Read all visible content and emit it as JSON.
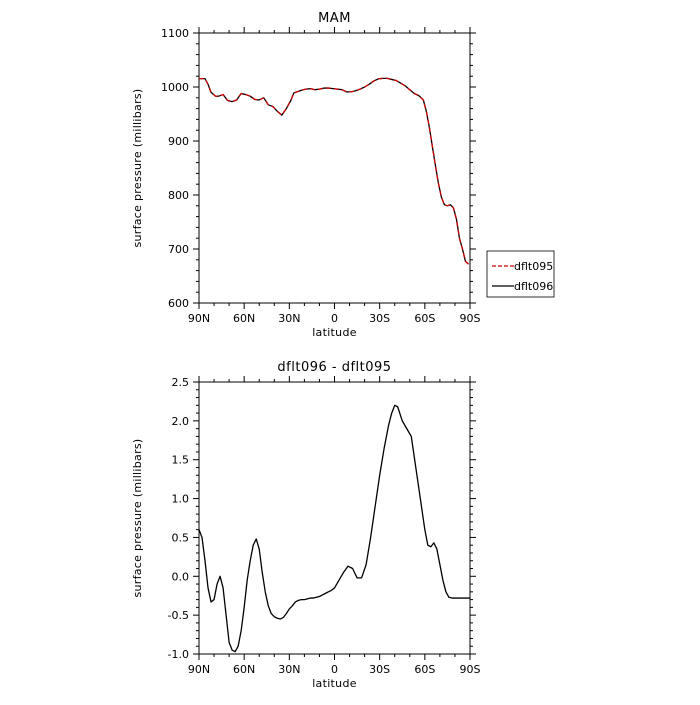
{
  "chart_data": [
    {
      "type": "line",
      "title": "MAM",
      "xlabel": "latitude",
      "ylabel": "surface pressure (millibars)",
      "xlim": [
        90,
        -90
      ],
      "ylim": [
        600,
        1100
      ],
      "xticks": [
        {
          "value": 90,
          "label": "90N"
        },
        {
          "value": 60,
          "label": "60N"
        },
        {
          "value": 30,
          "label": "30N"
        },
        {
          "value": 0,
          "label": "0"
        },
        {
          "value": -30,
          "label": "30S"
        },
        {
          "value": -60,
          "label": "60S"
        },
        {
          "value": -90,
          "label": "90S"
        }
      ],
      "yticks": [
        600,
        700,
        800,
        900,
        1000,
        1100
      ],
      "legend_position": "outside-right",
      "series": [
        {
          "name": "dflt095",
          "color": "#cc0000",
          "dash": "dashed",
          "x": [
            90,
            86,
            84,
            82,
            79,
            77,
            74,
            71,
            68,
            65,
            62,
            59,
            56,
            53,
            50,
            47,
            44,
            41,
            38,
            35,
            32,
            29,
            27,
            25,
            22,
            19,
            16,
            13,
            10,
            7,
            4,
            1,
            -2,
            -5,
            -8,
            -11,
            -14,
            -17,
            -20,
            -23,
            -26,
            -29,
            -32,
            -35,
            -38,
            -41,
            -44,
            -47,
            -50,
            -53,
            -56,
            -59,
            -61,
            -63,
            -65,
            -67,
            -69,
            -71,
            -73,
            -75,
            -77,
            -79,
            -81,
            -83,
            -85,
            -87,
            -89
          ],
          "values": [
            1015.5,
            1015.5,
            1005,
            990,
            983,
            983,
            986,
            975,
            973,
            976,
            988,
            986,
            983,
            977,
            976,
            980,
            967,
            964,
            955,
            948,
            960,
            975,
            989,
            991,
            994,
            996,
            997,
            995,
            996,
            998,
            998,
            997,
            996,
            995,
            991,
            991,
            993,
            996,
            1000,
            1005,
            1011,
            1015,
            1016,
            1016,
            1014,
            1012,
            1007,
            1002,
            995,
            988,
            984,
            976,
            955,
            925,
            890,
            855,
            822,
            796,
            782,
            780,
            782,
            776,
            755,
            720,
            700,
            677,
            672
          ]
        },
        {
          "name": "dflt096",
          "color": "#000000",
          "dash": "solid",
          "x": [
            90,
            86,
            84,
            82,
            79,
            77,
            74,
            71,
            68,
            65,
            62,
            59,
            56,
            53,
            50,
            47,
            44,
            41,
            38,
            35,
            32,
            29,
            27,
            25,
            22,
            19,
            16,
            13,
            10,
            7,
            4,
            1,
            -2,
            -5,
            -8,
            -11,
            -14,
            -17,
            -20,
            -23,
            -26,
            -29,
            -32,
            -35,
            -38,
            -41,
            -44,
            -47,
            -50,
            -53,
            -56,
            -59,
            -61,
            -63,
            -65,
            -67,
            -69,
            -71,
            -73,
            -75,
            -77,
            -79,
            -81,
            -83,
            -85,
            -87,
            -89
          ],
          "values": [
            1015.5,
            1015.5,
            1005,
            990,
            983,
            983,
            986,
            975,
            973,
            976,
            988,
            986,
            983,
            977,
            976,
            980,
            967,
            964,
            955,
            948,
            960,
            975,
            989,
            991,
            994,
            996,
            997,
            995,
            996,
            998,
            998,
            997,
            996,
            995,
            991,
            991,
            993,
            996,
            1000,
            1005,
            1011,
            1015,
            1016,
            1016,
            1014,
            1012,
            1007,
            1002,
            995,
            988,
            984,
            976,
            955,
            925,
            890,
            855,
            822,
            796,
            782,
            780,
            782,
            776,
            755,
            720,
            700,
            677,
            672
          ]
        }
      ]
    },
    {
      "type": "line",
      "title": "dflt096 - dflt095",
      "xlabel": "latitude",
      "ylabel": "surface pressure (millibars)",
      "xlim": [
        90,
        -90
      ],
      "ylim": [
        -1.0,
        2.5
      ],
      "xticks": [
        {
          "value": 90,
          "label": "90N"
        },
        {
          "value": 60,
          "label": "60N"
        },
        {
          "value": 30,
          "label": "30N"
        },
        {
          "value": 0,
          "label": "0"
        },
        {
          "value": -30,
          "label": "30S"
        },
        {
          "value": -60,
          "label": "60S"
        },
        {
          "value": -90,
          "label": "90S"
        }
      ],
      "yticks": [
        "-1.0",
        "-0.5",
        "0.0",
        "0.5",
        "1.0",
        "1.5",
        "2.0",
        "2.5"
      ],
      "series": [
        {
          "color": "#000000",
          "dash": "solid",
          "x": [
            90,
            88,
            86,
            84,
            82,
            80,
            78,
            76,
            74,
            72,
            70,
            68,
            66,
            64,
            62,
            60,
            58,
            56,
            54,
            52,
            50,
            48,
            46,
            44,
            42,
            40,
            38,
            36,
            34,
            32,
            30,
            28,
            26,
            24,
            22,
            20,
            18,
            16,
            14,
            12,
            10,
            8,
            6,
            4,
            2,
            0,
            -3,
            -6,
            -9,
            -12,
            -15,
            -18,
            -21,
            -24,
            -27,
            -30,
            -33,
            -36,
            -38,
            -40,
            -42,
            -45,
            -48,
            -51,
            -54,
            -57,
            -60,
            -62,
            -64,
            -66,
            -68,
            -70,
            -72,
            -74,
            -76,
            -78,
            -80,
            -82,
            -84,
            -86,
            -88,
            -90
          ],
          "values": [
            0.6,
            0.5,
            0.2,
            -0.15,
            -0.33,
            -0.3,
            -0.1,
            0.0,
            -0.15,
            -0.5,
            -0.85,
            -0.95,
            -0.97,
            -0.9,
            -0.7,
            -0.4,
            -0.05,
            0.2,
            0.4,
            0.48,
            0.35,
            0.05,
            -0.2,
            -0.38,
            -0.48,
            -0.52,
            -0.54,
            -0.55,
            -0.53,
            -0.48,
            -0.42,
            -0.38,
            -0.33,
            -0.31,
            -0.3,
            -0.3,
            -0.29,
            -0.28,
            -0.28,
            -0.27,
            -0.26,
            -0.24,
            -0.22,
            -0.2,
            -0.18,
            -0.15,
            -0.05,
            0.05,
            0.13,
            0.1,
            -0.02,
            -0.02,
            0.15,
            0.5,
            0.9,
            1.3,
            1.65,
            1.95,
            2.1,
            2.2,
            2.18,
            2.0,
            1.9,
            1.8,
            1.4,
            1.0,
            0.6,
            0.4,
            0.38,
            0.43,
            0.35,
            0.15,
            -0.05,
            -0.2,
            -0.27,
            -0.28,
            -0.28,
            -0.28,
            -0.28,
            -0.28,
            -0.28,
            -0.28
          ]
        }
      ]
    }
  ]
}
